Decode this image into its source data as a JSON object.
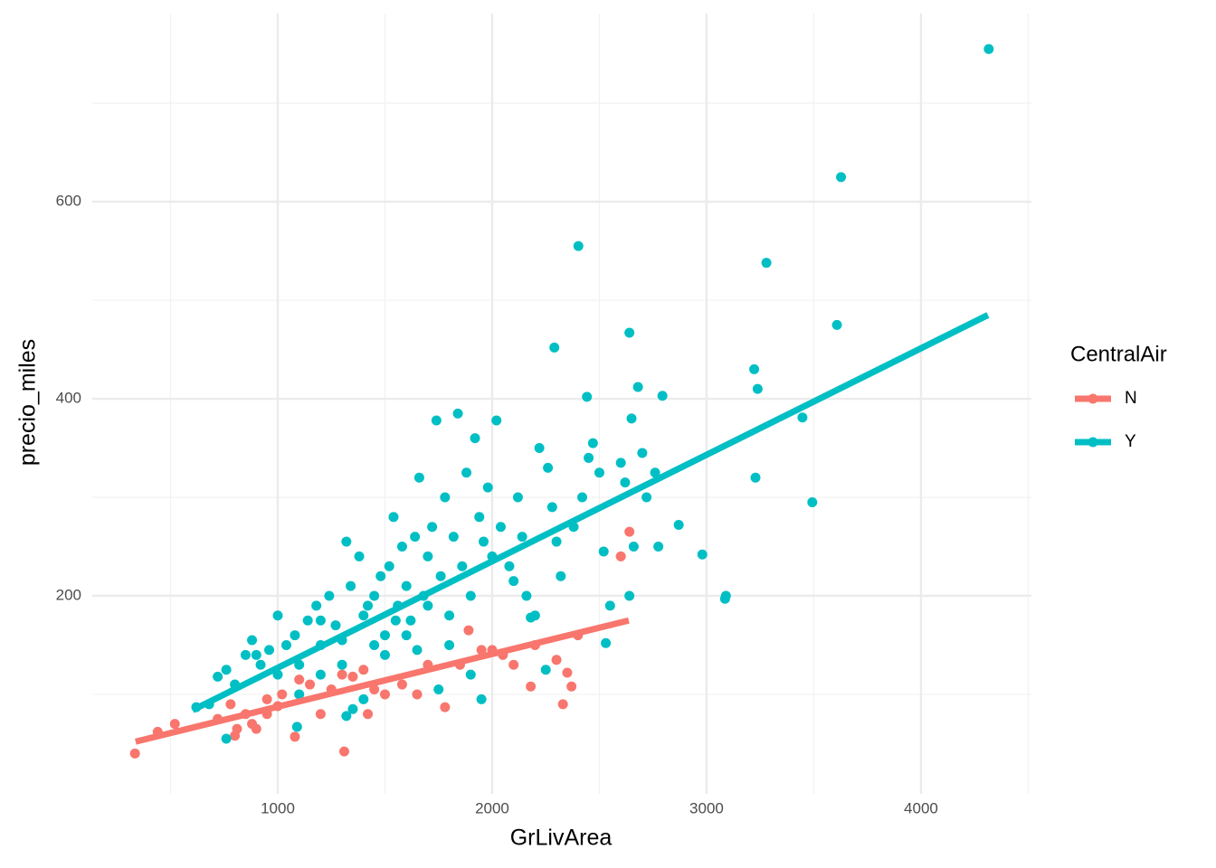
{
  "chart_data": {
    "type": "scatter",
    "x_label": "GrLivArea",
    "y_label": "precio_miles",
    "legend_title": "CentralAir",
    "xlim": [
      135,
      4515
    ],
    "ylim": [
      -1,
      791
    ],
    "xticks": [
      1000,
      2000,
      3000,
      4000
    ],
    "yticks": [
      200,
      400,
      600
    ],
    "x_minor_ticks": [
      500,
      1500,
      2500,
      3500,
      4500
    ],
    "y_minor_ticks": [
      100,
      300,
      500,
      700
    ],
    "grid": true,
    "legend_position": "right",
    "series": [
      {
        "name": "N",
        "color": "#F8766D",
        "x": [
          334,
          440,
          520,
          720,
          780,
          800,
          810,
          850,
          880,
          900,
          950,
          1000,
          1020,
          1080,
          1100,
          1200,
          1250,
          1300,
          1310,
          1350,
          1420,
          1500,
          1580,
          1650,
          1780,
          1850,
          1890,
          1950,
          2000,
          2050,
          2100,
          2180,
          2300,
          2330,
          2350,
          2370,
          2400,
          2600,
          2640,
          1700,
          1400,
          950,
          1150,
          1450,
          2200
        ],
        "values": [
          40,
          62,
          70,
          75,
          90,
          58,
          65,
          80,
          70,
          65,
          95,
          88,
          100,
          57,
          115,
          80,
          105,
          120,
          42,
          118,
          80,
          100,
          110,
          100,
          87,
          130,
          165,
          145,
          145,
          140,
          130,
          108,
          135,
          90,
          122,
          108,
          160,
          240,
          265,
          130,
          125,
          80,
          110,
          105,
          150
        ],
        "line_x": [
          337,
          2637
        ],
        "line_y": [
          52,
          175
        ]
      },
      {
        "name": "Y",
        "color": "#00BFC4",
        "x": [
          4316,
          3627,
          3279,
          2402,
          2290,
          2640,
          3222,
          3238,
          3608,
          3447,
          3228,
          3493,
          2442,
          2794,
          2980,
          2870,
          3090,
          3086,
          2775,
          2680,
          2650,
          620,
          680,
          720,
          760,
          800,
          850,
          880,
          920,
          960,
          1000,
          1040,
          1080,
          1100,
          1140,
          1180,
          1200,
          1240,
          1270,
          1300,
          1320,
          1340,
          1380,
          1400,
          1420,
          1450,
          1480,
          1500,
          1520,
          1540,
          1560,
          1580,
          1600,
          1620,
          1640,
          1660,
          1680,
          1700,
          1720,
          1740,
          1760,
          1780,
          1800,
          1820,
          1840,
          1860,
          1880,
          1900,
          1920,
          1940,
          1960,
          1980,
          2000,
          2020,
          2040,
          2080,
          2100,
          2120,
          2140,
          2160,
          2200,
          2220,
          2260,
          2280,
          2300,
          2320,
          2380,
          2420,
          2450,
          2470,
          2500,
          2520,
          2550,
          2600,
          2620,
          2660,
          2700,
          2720,
          2760,
          1100,
          1200,
          1300,
          1400,
          1500,
          1600,
          1700,
          1800,
          1900,
          1950,
          760,
          900,
          1000,
          1200,
          1350,
          1450,
          1550,
          1650,
          1750,
          2250,
          2530,
          2640,
          2180,
          1090,
          1320
        ],
        "values": [
          755,
          625,
          538,
          555,
          452,
          467,
          430,
          410,
          475,
          381,
          320,
          295,
          402,
          403,
          242,
          272,
          200,
          197,
          250,
          412,
          380,
          87,
          90,
          118,
          125,
          110,
          140,
          155,
          130,
          145,
          180,
          150,
          160,
          130,
          175,
          190,
          150,
          200,
          170,
          155,
          255,
          210,
          240,
          180,
          190,
          200,
          220,
          160,
          230,
          280,
          190,
          250,
          210,
          175,
          260,
          320,
          200,
          240,
          270,
          378,
          220,
          300,
          180,
          260,
          385,
          230,
          325,
          200,
          360,
          280,
          255,
          310,
          240,
          378,
          270,
          230,
          215,
          300,
          260,
          200,
          180,
          350,
          330,
          290,
          255,
          220,
          270,
          300,
          340,
          355,
          325,
          245,
          190,
          335,
          315,
          250,
          345,
          300,
          325,
          100,
          120,
          130,
          95,
          140,
          160,
          190,
          150,
          120,
          95,
          55,
          140,
          120,
          175,
          85,
          150,
          175,
          145,
          105,
          125,
          152,
          200,
          178,
          67,
          78
        ],
        "line_x": [
          603,
          4312
        ],
        "line_y": [
          84,
          485
        ]
      }
    ]
  }
}
